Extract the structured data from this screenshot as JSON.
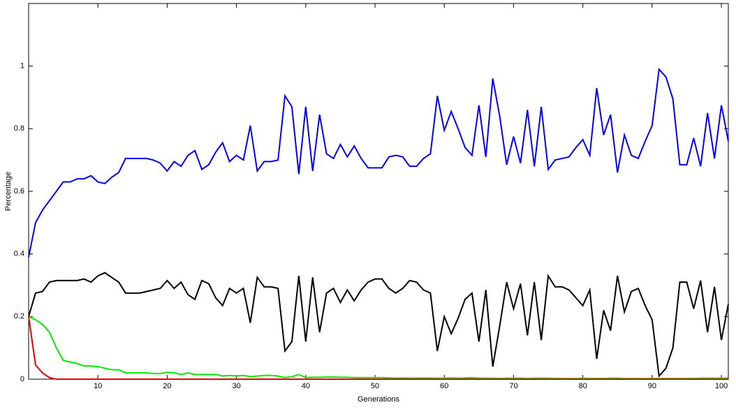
{
  "chart_data": {
    "type": "line",
    "x_label": "Generations",
    "y_label": "Percentage",
    "xlim": [
      0,
      101
    ],
    "ylim": [
      0,
      1.2
    ],
    "xticks": [
      10,
      20,
      30,
      40,
      50,
      60,
      70,
      80,
      90,
      100
    ],
    "yticks": [
      0,
      0.2,
      0.4,
      0.6,
      0.8,
      1
    ],
    "x": [
      0,
      1,
      2,
      3,
      4,
      5,
      6,
      7,
      8,
      9,
      10,
      11,
      12,
      13,
      14,
      15,
      16,
      17,
      18,
      19,
      20,
      21,
      22,
      23,
      24,
      25,
      26,
      27,
      28,
      29,
      30,
      31,
      32,
      33,
      34,
      35,
      36,
      37,
      38,
      39,
      40,
      41,
      42,
      43,
      44,
      45,
      46,
      47,
      48,
      49,
      50,
      51,
      52,
      53,
      54,
      55,
      56,
      57,
      58,
      59,
      60,
      61,
      62,
      63,
      64,
      65,
      66,
      67,
      68,
      69,
      70,
      71,
      72,
      73,
      74,
      75,
      76,
      77,
      78,
      79,
      80,
      81,
      82,
      83,
      84,
      85,
      86,
      87,
      88,
      89,
      90,
      91,
      92,
      93,
      94,
      95,
      96,
      97,
      98,
      99,
      100,
      101
    ],
    "series": [
      {
        "color": "#0000ff",
        "values": [
          0.39,
          0.5,
          0.54,
          0.57,
          0.6,
          0.63,
          0.63,
          0.64,
          0.64,
          0.65,
          0.63,
          0.625,
          0.645,
          0.66,
          0.705,
          0.705,
          0.705,
          0.705,
          0.7,
          0.69,
          0.665,
          0.695,
          0.68,
          0.715,
          0.73,
          0.67,
          0.685,
          0.725,
          0.755,
          0.695,
          0.715,
          0.7,
          0.81,
          0.665,
          0.695,
          0.695,
          0.7,
          0.905,
          0.87,
          0.655,
          0.87,
          0.665,
          0.845,
          0.72,
          0.705,
          0.75,
          0.71,
          0.745,
          0.705,
          0.675,
          0.675,
          0.675,
          0.71,
          0.715,
          0.71,
          0.68,
          0.68,
          0.705,
          0.72,
          0.905,
          0.795,
          0.855,
          0.8,
          0.74,
          0.715,
          0.875,
          0.71,
          0.96,
          0.84,
          0.685,
          0.775,
          0.69,
          0.86,
          0.68,
          0.87,
          0.67,
          0.7,
          0.705,
          0.71,
          0.74,
          0.765,
          0.715,
          0.93,
          0.78,
          0.845,
          0.66,
          0.78,
          0.715,
          0.705,
          0.76,
          0.81,
          0.99,
          0.965,
          0.895,
          0.685,
          0.685,
          0.77,
          0.68,
          0.85,
          0.705,
          0.875,
          0.76
        ]
      },
      {
        "color": "#000000",
        "values": [
          0.2,
          0.275,
          0.28,
          0.31,
          0.315,
          0.315,
          0.315,
          0.315,
          0.32,
          0.31,
          0.33,
          0.34,
          0.325,
          0.31,
          0.275,
          0.275,
          0.275,
          0.28,
          0.285,
          0.29,
          0.315,
          0.29,
          0.31,
          0.27,
          0.255,
          0.315,
          0.305,
          0.26,
          0.235,
          0.29,
          0.275,
          0.29,
          0.18,
          0.325,
          0.295,
          0.295,
          0.29,
          0.09,
          0.12,
          0.33,
          0.12,
          0.325,
          0.15,
          0.275,
          0.29,
          0.245,
          0.285,
          0.25,
          0.285,
          0.31,
          0.32,
          0.32,
          0.29,
          0.275,
          0.29,
          0.315,
          0.31,
          0.285,
          0.275,
          0.09,
          0.2,
          0.145,
          0.195,
          0.255,
          0.275,
          0.12,
          0.285,
          0.04,
          0.17,
          0.31,
          0.225,
          0.305,
          0.14,
          0.31,
          0.125,
          0.33,
          0.295,
          0.295,
          0.285,
          0.26,
          0.235,
          0.285,
          0.065,
          0.22,
          0.155,
          0.33,
          0.215,
          0.28,
          0.29,
          0.235,
          0.19,
          0.01,
          0.035,
          0.1,
          0.31,
          0.31,
          0.225,
          0.315,
          0.15,
          0.295,
          0.125,
          0.24
        ]
      },
      {
        "color": "#00ee00",
        "values": [
          0.2,
          0.19,
          0.175,
          0.15,
          0.1,
          0.06,
          0.055,
          0.05,
          0.042,
          0.042,
          0.04,
          0.035,
          0.03,
          0.03,
          0.02,
          0.02,
          0.02,
          0.02,
          0.018,
          0.018,
          0.022,
          0.02,
          0.015,
          0.02,
          0.015,
          0.015,
          0.015,
          0.015,
          0.01,
          0.012,
          0.01,
          0.012,
          0.008,
          0.01,
          0.012,
          0.012,
          0.01,
          0.005,
          0.008,
          0.015,
          0.005,
          0.006,
          0.006,
          0.007,
          0.007,
          0.006,
          0.006,
          0.005,
          0.005,
          0.005,
          0.005,
          0.005,
          0.004,
          0.003,
          0.004,
          0.003,
          0.003,
          0.004,
          0.003,
          0.003,
          0.003,
          0.004,
          0.003,
          0.004,
          0.005,
          0.003,
          0.003,
          0.003,
          0.002,
          0.003,
          0.003,
          0.003,
          0.002,
          0.003,
          0.003,
          0.003,
          0.002,
          0.002,
          0.002,
          0.002,
          0.003,
          0.002,
          0.002,
          0.002,
          0.003,
          0.003,
          0.002,
          0.002,
          0.002,
          0.002,
          0.002,
          0.002,
          0.002,
          0.002,
          0.002,
          0.002,
          0.002,
          0.003,
          0.003,
          0.003,
          0.003,
          0.003
        ]
      },
      {
        "color": "#ee0000",
        "values": [
          0.2,
          0.045,
          0.02,
          0.005,
          0,
          0,
          0,
          0,
          0,
          0,
          0,
          0,
          0,
          0,
          0,
          0,
          0,
          0,
          0,
          0,
          0,
          0,
          0,
          0,
          0,
          0,
          0,
          0,
          0,
          0,
          0,
          0,
          0,
          0,
          0,
          0,
          0,
          0,
          0,
          0,
          0,
          0,
          0,
          0,
          0,
          0,
          0,
          0,
          0,
          0,
          0,
          0,
          0,
          0,
          0,
          0,
          0,
          0,
          0,
          0,
          0,
          0,
          0,
          0,
          0,
          0,
          0,
          0,
          0,
          0,
          0,
          0,
          0,
          0,
          0,
          0,
          0,
          0,
          0,
          0,
          0,
          0,
          0,
          0,
          0,
          0,
          0,
          0,
          0,
          0,
          0,
          0,
          0,
          0,
          0,
          0,
          0,
          0,
          0,
          0,
          0,
          0
        ]
      }
    ]
  }
}
